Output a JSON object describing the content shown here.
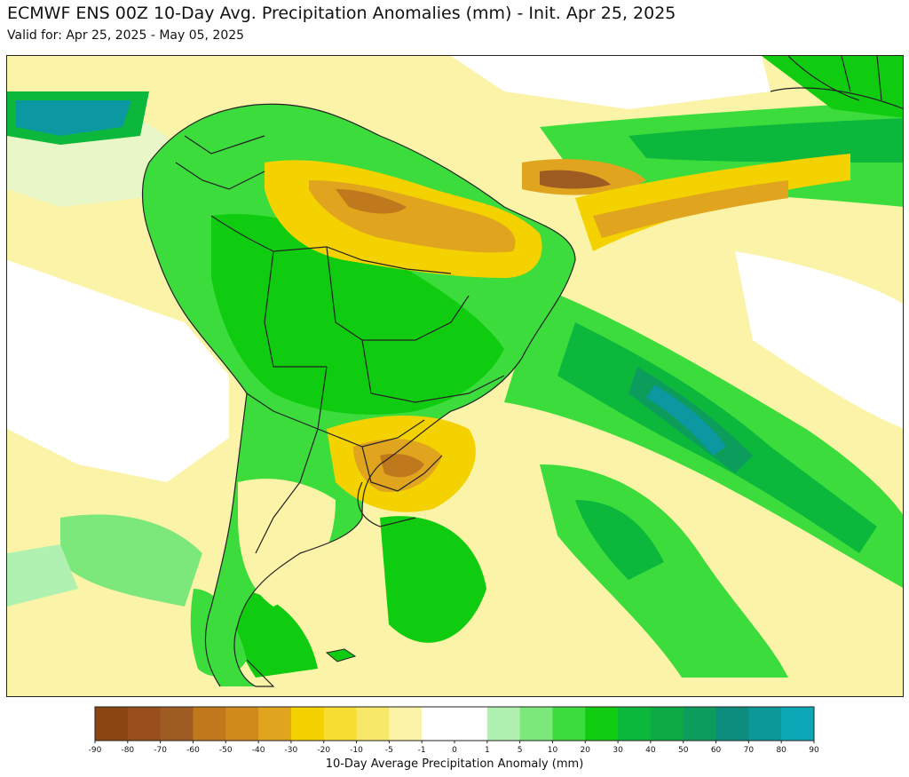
{
  "header": {
    "title": "ECMWF ENS 00Z 10-Day Avg. Precipitation Anomalies (mm) - Init. Apr 25, 2025",
    "subtitle": "Valid for: Apr 25, 2025 - May 05, 2025"
  },
  "colorbar": {
    "title": "10-Day Average Precipitation Anomaly (mm)",
    "ticks": [
      "-90",
      "-80",
      "-70",
      "-60",
      "-50",
      "-40",
      "-30",
      "-20",
      "-10",
      "-5",
      "-1",
      "0",
      "1",
      "5",
      "10",
      "20",
      "30",
      "40",
      "50",
      "60",
      "70",
      "80",
      "90"
    ],
    "colors": [
      "#8b4513",
      "#9a4e1c",
      "#9f5c22",
      "#c0781c",
      "#d08a1c",
      "#e0a41e",
      "#f4d200",
      "#f7dc32",
      "#f8e86a",
      "#fbf4a8",
      "#ffffff",
      "#ffffff",
      "#b0f0b0",
      "#7ce87c",
      "#3cdc3c",
      "#10cc10",
      "#0cb83c",
      "#0caa44",
      "#0c9c5c",
      "#0c8c7c",
      "#0c9898",
      "#0ca8b8"
    ]
  },
  "map": {
    "region": "South America",
    "palette": {
      "ocean_base": "#fbf4a8",
      "land_base": "#10cc10",
      "border": "#222222"
    }
  }
}
